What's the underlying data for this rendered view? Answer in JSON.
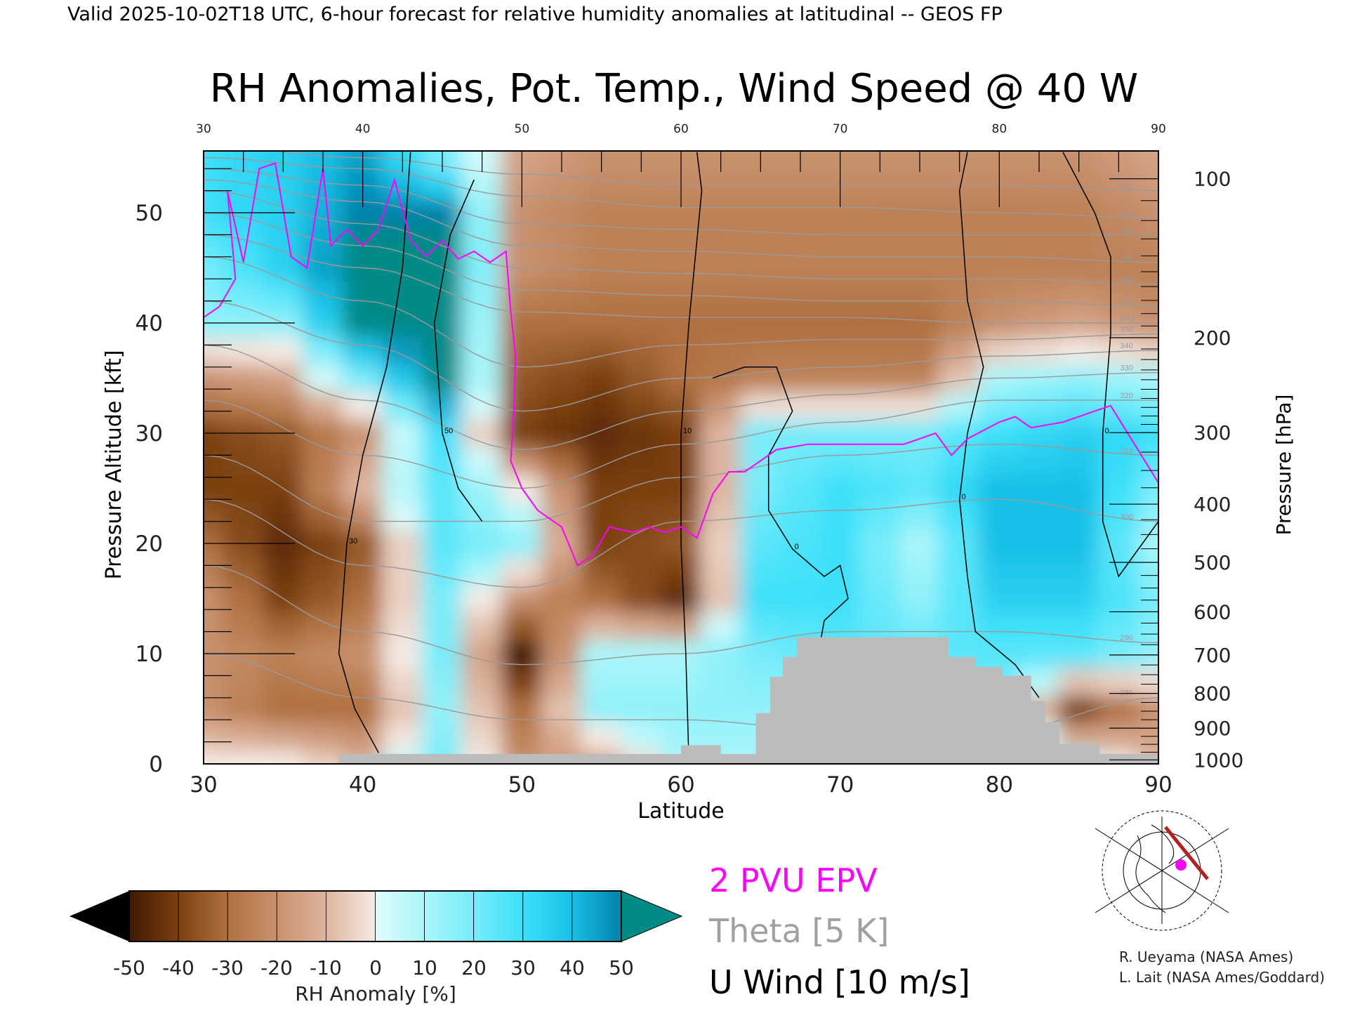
{
  "header": {
    "subtitle": "Valid 2025-10-02T18 UTC, 6-hour forecast for relative humidity anomalies at latitudinal -- GEOS FP",
    "title": "RH Anomalies, Pot. Temp., Wind Speed @ 40 W"
  },
  "legend": {
    "epv": "2 PVU EPV",
    "theta": "Theta [5 K]",
    "wind": "U Wind [10 m/s]",
    "epv_color": "#ff00ff",
    "theta_color": "#a0a0a0",
    "wind_color": "#000000"
  },
  "credits": {
    "line1": "R. Ueyama (NASA Ames)",
    "line2": "L. Lait (NASA Ames/Goddard)"
  },
  "colorbar": {
    "label": "RH Anomaly [%]",
    "ticks": [
      "-50",
      "-40",
      "-30",
      "-20",
      "-10",
      "0",
      "10",
      "20",
      "30",
      "40",
      "50"
    ],
    "below_color": "#000000",
    "above_color": "#008a88"
  },
  "chart_data": {
    "type": "heatmap",
    "title": "RH Anomalies, Pot. Temp., Wind Speed @ 40 W",
    "xlabel": "Latitude",
    "ylabel": "Pressure Altitude [kft]",
    "y2label": "Pressure [hPa]",
    "xlim": [
      30,
      90
    ],
    "ylim": [
      0,
      55.6
    ],
    "x_ticks": [
      "30",
      "40",
      "50",
      "60",
      "70",
      "80",
      "90"
    ],
    "top_ticks": [
      "30",
      "40",
      "50",
      "60",
      "70",
      "80",
      "90"
    ],
    "y_ticks": [
      "0",
      "10",
      "20",
      "30",
      "40",
      "50"
    ],
    "pressure_ticks": [
      "100",
      "200",
      "300",
      "400",
      "500",
      "600",
      "700",
      "800",
      "900",
      "1000"
    ],
    "grid_lat": [
      30,
      35,
      40,
      45,
      50,
      55,
      60,
      65,
      70,
      75,
      80,
      85,
      90
    ],
    "grid_alt_kft": [
      0,
      5,
      10,
      15,
      20,
      25,
      30,
      35,
      40,
      45,
      50,
      55
    ],
    "rh_anomaly": [
      [
        0,
        0,
        -10,
        20,
        -20,
        -15,
        10,
        10,
        10,
        10,
        15,
        10,
        -10
      ],
      [
        -20,
        -30,
        -30,
        15,
        -30,
        15,
        15,
        15,
        10,
        10,
        20,
        -40,
        -20
      ],
      [
        -20,
        -25,
        -20,
        20,
        -50,
        10,
        10,
        20,
        25,
        25,
        25,
        25,
        15
      ],
      [
        -20,
        -40,
        -30,
        20,
        -20,
        -30,
        -45,
        30,
        30,
        15,
        35,
        35,
        20
      ],
      [
        -30,
        -45,
        -35,
        25,
        15,
        -40,
        -35,
        25,
        30,
        10,
        40,
        40,
        10
      ],
      [
        -40,
        -40,
        -10,
        25,
        0,
        -40,
        -40,
        20,
        30,
        25,
        40,
        40,
        20
      ],
      [
        -40,
        -35,
        -20,
        30,
        -40,
        -45,
        -40,
        20,
        20,
        20,
        30,
        35,
        30
      ],
      [
        -20,
        -15,
        20,
        55,
        -35,
        -40,
        -30,
        -25,
        -25,
        -25,
        10,
        15,
        10
      ],
      [
        15,
        15,
        55,
        55,
        -30,
        -30,
        -30,
        -30,
        -30,
        -30,
        -20,
        -15,
        -20
      ],
      [
        20,
        35,
        55,
        55,
        -20,
        -25,
        -25,
        -25,
        -25,
        -25,
        -25,
        -25,
        -25
      ],
      [
        30,
        35,
        50,
        50,
        -20,
        -25,
        -25,
        -25,
        -25,
        -25,
        -25,
        -25,
        -20
      ],
      [
        30,
        35,
        45,
        20,
        -15,
        -20,
        -20,
        -20,
        -20,
        -20,
        -20,
        -20,
        -15
      ]
    ],
    "theta_lats": [
      30,
      40,
      50,
      60,
      70,
      80,
      90
    ],
    "theta_contours": [
      {
        "level": "420",
        "alt": [
          56,
          55,
          53.5,
          52.5,
          52.5,
          52.5,
          52
        ]
      },
      {
        "level": "410",
        "alt": [
          55,
          54,
          51.5,
          50.5,
          50.5,
          50,
          49.5
        ]
      },
      {
        "level": "400",
        "alt": [
          54,
          52.5,
          49,
          48.5,
          48,
          48,
          48
        ]
      },
      {
        "level": "390",
        "alt": [
          53,
          51,
          47,
          46.5,
          46,
          46,
          45.5
        ]
      },
      {
        "level": "380",
        "alt": [
          52,
          49,
          45,
          44.5,
          44,
          44,
          43.5
        ]
      },
      {
        "level": "370",
        "alt": [
          50,
          47,
          43,
          42.5,
          42,
          42,
          41.5
        ]
      },
      {
        "level": "360",
        "alt": [
          48,
          45,
          41,
          40.5,
          40.5,
          40,
          40
        ]
      },
      {
        "level": "350",
        "alt": [
          46,
          42,
          36,
          38,
          38.5,
          38.5,
          39
        ]
      },
      {
        "level": "340",
        "alt": [
          42,
          38,
          32,
          35,
          36,
          37,
          37.5
        ]
      },
      {
        "level": "330",
        "alt": [
          38,
          33,
          28.5,
          32,
          33.5,
          35,
          35.5
        ]
      },
      {
        "level": "320",
        "alt": [
          33,
          28,
          25,
          29,
          31,
          33,
          33
        ]
      },
      {
        "level": "310",
        "alt": [
          28,
          22,
          22,
          26,
          28,
          29,
          28
        ]
      },
      {
        "level": "300",
        "alt": [
          24,
          18,
          16,
          22,
          23,
          24,
          22
        ]
      },
      {
        "level": "290",
        "alt": [
          18,
          12,
          9,
          10,
          12,
          12,
          11
        ]
      },
      {
        "level": "280",
        "alt": [
          10,
          6,
          4,
          4,
          3,
          3,
          6
        ]
      }
    ],
    "epv_2pvu": [
      [
        30,
        40.5
      ],
      [
        31,
        41.5
      ],
      [
        32,
        44
      ],
      [
        31.5,
        52
      ],
      [
        32.5,
        45.5
      ],
      [
        33.5,
        54
      ],
      [
        34.5,
        54.5
      ],
      [
        35.5,
        46
      ],
      [
        36.5,
        45
      ],
      [
        37.5,
        54
      ],
      [
        38,
        47
      ],
      [
        39,
        48.5
      ],
      [
        40,
        47
      ],
      [
        41,
        48.5
      ],
      [
        42,
        53
      ],
      [
        43,
        47.5
      ],
      [
        44,
        46
      ],
      [
        45,
        47.5
      ],
      [
        46,
        45.8
      ],
      [
        47,
        46.5
      ],
      [
        48,
        45.5
      ],
      [
        49,
        46.5
      ],
      [
        49.3,
        41
      ],
      [
        49.6,
        37
      ],
      [
        49.5,
        32
      ],
      [
        49.3,
        27.5
      ],
      [
        50,
        25
      ],
      [
        51,
        23
      ],
      [
        52.5,
        21.5
      ],
      [
        53.5,
        18
      ],
      [
        54.5,
        19
      ],
      [
        55.5,
        21.5
      ],
      [
        57,
        21
      ],
      [
        58,
        21.5
      ],
      [
        59,
        21
      ],
      [
        60,
        21.5
      ],
      [
        61,
        20.5
      ],
      [
        62,
        24.5
      ],
      [
        63,
        26.5
      ],
      [
        64,
        26.5
      ],
      [
        65,
        27.5
      ],
      [
        66,
        28.5
      ],
      [
        68,
        29
      ],
      [
        70,
        29
      ],
      [
        72,
        29
      ],
      [
        74,
        29
      ],
      [
        75,
        29.5
      ],
      [
        76,
        30
      ],
      [
        77,
        28
      ],
      [
        78,
        29.5
      ],
      [
        80,
        31
      ],
      [
        81,
        31.5
      ],
      [
        82,
        30.5
      ],
      [
        84,
        31
      ],
      [
        86,
        32
      ],
      [
        87,
        32.5
      ],
      [
        90,
        25.5
      ]
    ],
    "u_wind_contours": [
      {
        "level": "0",
        "points": [
          [
            78,
            55.5
          ],
          [
            77.5,
            52
          ],
          [
            78,
            42
          ],
          [
            79,
            36
          ],
          [
            78,
            30
          ],
          [
            77.5,
            24
          ],
          [
            78,
            17
          ],
          [
            78.5,
            12
          ],
          [
            81,
            9
          ],
          [
            82.5,
            6
          ]
        ]
      },
      {
        "level": "10",
        "points": [
          [
            61,
            55.5
          ],
          [
            61.3,
            52
          ],
          [
            60.5,
            40
          ],
          [
            60,
            30
          ],
          [
            60,
            20
          ],
          [
            60.3,
            10
          ],
          [
            60.5,
            0
          ]
        ]
      },
      {
        "level": "0",
        "points": [
          [
            84,
            55.5
          ],
          [
            86,
            50
          ],
          [
            87,
            46
          ],
          [
            87,
            39
          ],
          [
            86.5,
            30
          ],
          [
            86.5,
            22
          ],
          [
            87.5,
            17
          ],
          [
            89,
            20
          ],
          [
            90,
            22
          ]
        ]
      },
      {
        "level": "30",
        "points": [
          [
            43,
            55.5
          ],
          [
            42.5,
            45
          ],
          [
            41.5,
            36
          ],
          [
            40,
            28
          ],
          [
            39,
            20
          ],
          [
            38.5,
            10
          ],
          [
            39.5,
            5
          ],
          [
            41,
            1
          ]
        ]
      },
      {
        "level": "50",
        "points": [
          [
            47,
            53
          ],
          [
            45.5,
            48
          ],
          [
            44.5,
            40
          ],
          [
            45,
            30
          ],
          [
            46,
            25
          ],
          [
            47.5,
            22
          ]
        ]
      },
      {
        "level": "0",
        "points": [
          [
            62,
            35
          ],
          [
            64,
            36
          ],
          [
            66,
            36
          ],
          [
            67,
            32
          ],
          [
            65.5,
            28
          ],
          [
            65.5,
            23
          ],
          [
            67,
            19.5
          ],
          [
            69,
            17
          ],
          [
            70,
            18
          ],
          [
            70.5,
            15
          ],
          [
            69,
            13
          ],
          [
            68.5,
            9
          ],
          [
            69,
            7
          ]
        ]
      }
    ],
    "terrain_kft": [
      [
        30,
        0
      ],
      [
        38.5,
        0.9
      ],
      [
        60,
        1.7
      ],
      [
        62.5,
        0.9
      ],
      [
        64.7,
        4.6
      ],
      [
        65.6,
        7.9
      ],
      [
        66.4,
        9.7
      ],
      [
        67.3,
        11.5
      ],
      [
        76.8,
        9.7
      ],
      [
        78.5,
        8.8
      ],
      [
        80.2,
        8.0
      ],
      [
        82,
        5.7
      ],
      [
        82.9,
        3.8
      ],
      [
        83.8,
        1.8
      ],
      [
        86.3,
        0.9
      ],
      [
        90,
        0
      ]
    ]
  }
}
